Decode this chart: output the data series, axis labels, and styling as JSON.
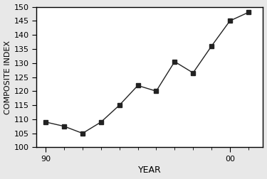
{
  "years": [
    1990,
    1991,
    1992,
    1993,
    1994,
    1995,
    1996,
    1997,
    1998,
    1999,
    2000,
    2001
  ],
  "values": [
    109,
    107.5,
    105,
    109,
    115,
    122,
    120,
    130.5,
    126.5,
    136,
    145,
    148
  ],
  "xlim": [
    1989.5,
    2001.8
  ],
  "ylim": [
    100,
    150
  ],
  "yticks": [
    100,
    105,
    110,
    115,
    120,
    125,
    130,
    135,
    140,
    145,
    150
  ],
  "xtick_major_positions": [
    1990,
    2000
  ],
  "xtick_major_labels": [
    "90",
    "00"
  ],
  "xlabel": "YEAR",
  "ylabel": "COMPOSITE INDEX",
  "line_color": "#222222",
  "marker": "s",
  "marker_size": 4,
  "bg_color": "#e8e8e8",
  "plot_bg_color": "#ffffff",
  "ylabel_fontsize": 8,
  "xlabel_fontsize": 9,
  "tick_labelsize": 8
}
